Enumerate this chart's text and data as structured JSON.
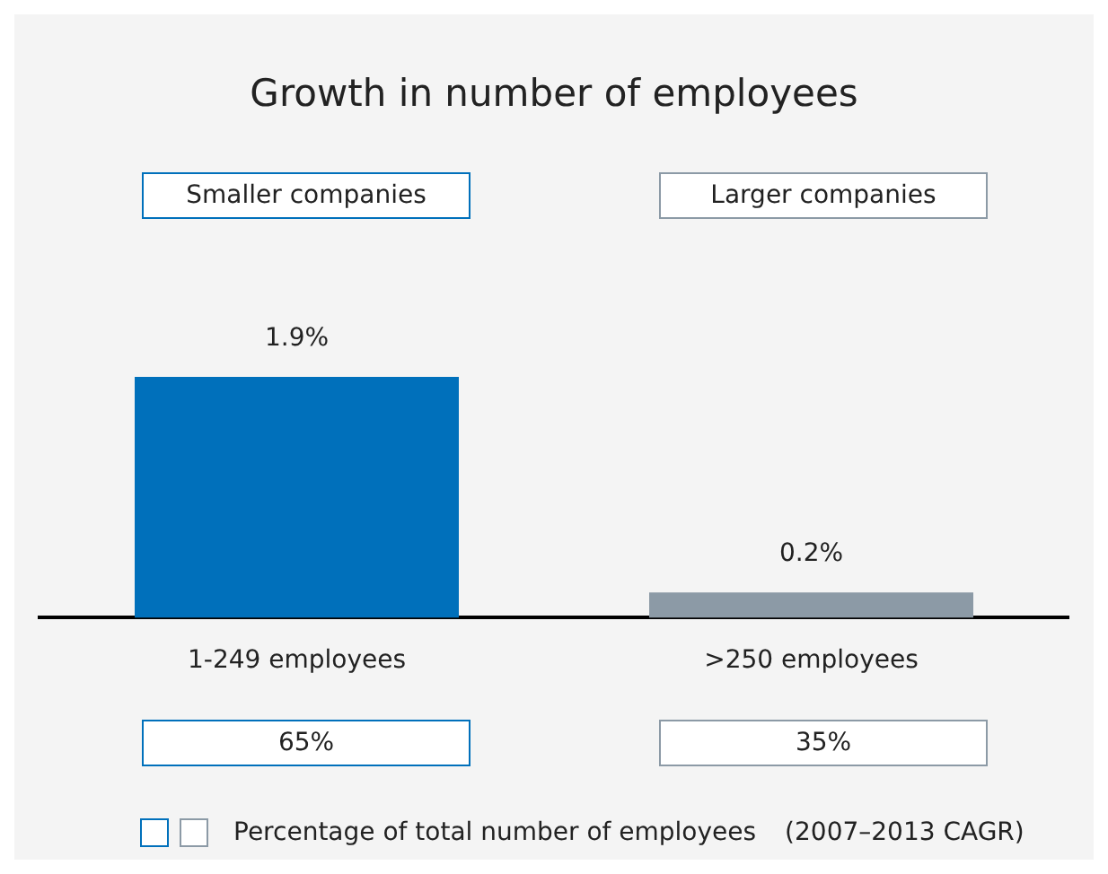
{
  "chart_data": {
    "type": "bar",
    "title": "Growth in number of employees",
    "categories": [
      "1-249 employees",
      ">250 employees"
    ],
    "values": [
      1.9,
      0.2
    ],
    "colors": [
      "#0070bb",
      "#8c9aa6"
    ],
    "value_labels": [
      "1.9%",
      "0.2%"
    ],
    "grid": false,
    "legend": false,
    "annotations": [
      "Smaller companies",
      "Larger companies",
      "65%",
      "35%",
      "Percentage of total number of employees",
      "(2007–2013 CAGR)"
    ]
  }
}
